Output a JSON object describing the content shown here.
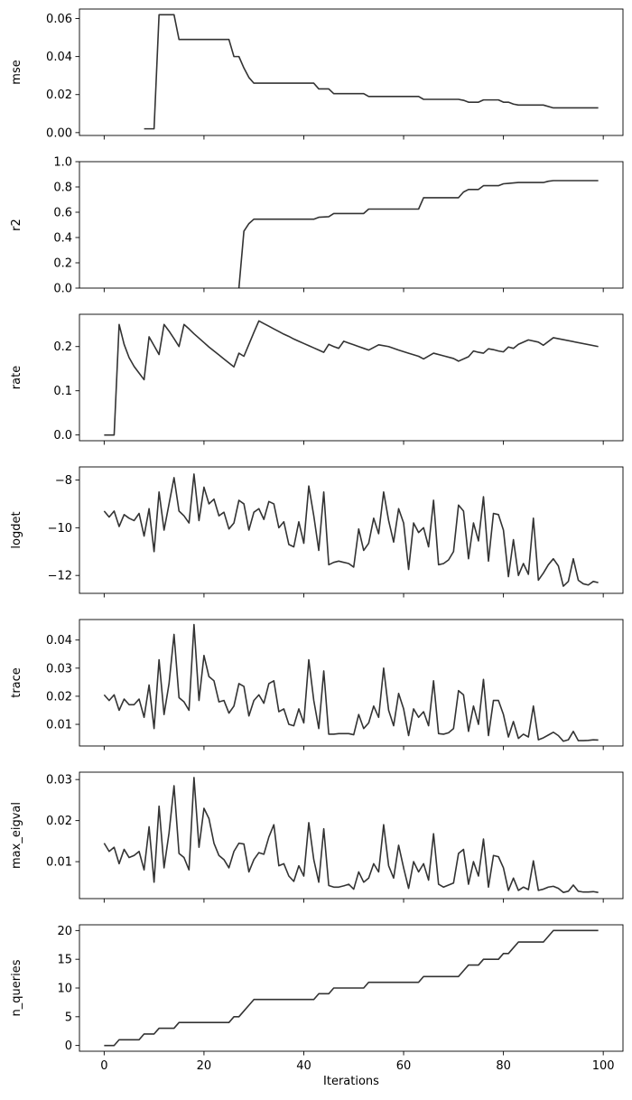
{
  "chart_data": [
    {
      "type": "line",
      "ylabel": "mse",
      "xlabel": "",
      "xlim": [
        -4.95,
        103.95
      ],
      "ylim": [
        -0.0015,
        0.065
      ],
      "yticks": [
        0.0,
        0.02,
        0.04,
        0.06
      ],
      "ytick_labels": [
        "0.00",
        "0.02",
        "0.04",
        "0.06"
      ],
      "xticks": [
        0,
        20,
        40,
        60,
        80,
        100
      ],
      "xtick_labels": [
        "",
        "",
        "",
        "",
        "",
        ""
      ],
      "color": "#333333",
      "x": [
        8,
        10,
        11,
        14,
        15,
        25,
        26,
        27,
        28,
        29,
        30,
        42,
        43,
        45,
        46,
        52,
        53,
        63,
        64,
        71,
        72,
        73,
        75,
        76,
        79,
        80,
        81,
        82,
        83,
        88,
        90,
        99
      ],
      "y": [
        0.002,
        0.002,
        0.062,
        0.062,
        0.049,
        0.049,
        0.04,
        0.04,
        0.034,
        0.029,
        0.026,
        0.026,
        0.023,
        0.023,
        0.0205,
        0.0205,
        0.019,
        0.019,
        0.0175,
        0.0175,
        0.017,
        0.016,
        0.016,
        0.0172,
        0.0172,
        0.016,
        0.016,
        0.015,
        0.0145,
        0.0145,
        0.013,
        0.013
      ]
    },
    {
      "type": "line",
      "ylabel": "r2",
      "xlabel": "",
      "xlim": [
        -4.95,
        103.95
      ],
      "ylim": [
        0.0,
        1.0
      ],
      "yticks": [
        0.0,
        0.2,
        0.4,
        0.6,
        0.8,
        1.0
      ],
      "ytick_labels": [
        "0.0",
        "0.2",
        "0.4",
        "0.6",
        "0.8",
        "1.0"
      ],
      "xticks": [
        0,
        20,
        40,
        60,
        80,
        100
      ],
      "xtick_labels": [
        "",
        "",
        "",
        "",
        "",
        ""
      ],
      "color": "#333333",
      "x": [
        27,
        28,
        29,
        30,
        42,
        43,
        45,
        46,
        52,
        53,
        63,
        64,
        71,
        72,
        73,
        75,
        76,
        79,
        80,
        81,
        83,
        88,
        89,
        90,
        99
      ],
      "y": [
        0.0,
        0.45,
        0.51,
        0.545,
        0.545,
        0.56,
        0.565,
        0.59,
        0.59,
        0.625,
        0.625,
        0.715,
        0.715,
        0.76,
        0.78,
        0.78,
        0.81,
        0.81,
        0.825,
        0.828,
        0.835,
        0.835,
        0.845,
        0.85,
        0.85
      ]
    },
    {
      "type": "line",
      "ylabel": "rate",
      "xlabel": "",
      "xlim": [
        -4.95,
        103.95
      ],
      "ylim": [
        -0.013,
        0.273
      ],
      "yticks": [
        0.0,
        0.1,
        0.2
      ],
      "ytick_labels": [
        "0.0",
        "0.1",
        "0.2"
      ],
      "xticks": [
        0,
        20,
        40,
        60,
        80,
        100
      ],
      "xtick_labels": [
        "",
        "",
        "",
        "",
        "",
        ""
      ],
      "color": "#333333",
      "x": [
        0,
        2,
        3,
        4,
        5,
        6,
        7,
        8,
        9,
        10,
        11,
        12,
        13,
        14,
        15,
        16,
        17,
        18,
        19,
        20,
        21,
        22,
        23,
        24,
        25,
        26,
        27,
        28,
        29,
        30,
        31,
        32,
        33,
        34,
        35,
        36,
        37,
        38,
        39,
        40,
        41,
        42,
        43,
        44,
        45,
        46,
        47,
        48,
        49,
        50,
        51,
        52,
        53,
        55,
        57,
        59,
        61,
        63,
        64,
        66,
        68,
        70,
        71,
        73,
        74,
        75,
        76,
        77,
        78,
        79,
        80,
        81,
        82,
        83,
        85,
        87,
        88,
        90,
        99
      ],
      "y": [
        0.0,
        0.0,
        0.25,
        0.205,
        0.175,
        0.155,
        0.14,
        0.125,
        0.222,
        0.202,
        0.182,
        0.25,
        0.235,
        0.218,
        0.2,
        0.25,
        0.24,
        0.229,
        0.219,
        0.209,
        0.199,
        0.19,
        0.181,
        0.172,
        0.163,
        0.154,
        0.185,
        0.178,
        0.205,
        0.232,
        0.258,
        0.252,
        0.246,
        0.24,
        0.234,
        0.228,
        0.223,
        0.217,
        0.212,
        0.207,
        0.202,
        0.197,
        0.192,
        0.187,
        0.205,
        0.2,
        0.196,
        0.212,
        0.208,
        0.204,
        0.2,
        0.196,
        0.192,
        0.204,
        0.2,
        0.192,
        0.185,
        0.178,
        0.172,
        0.185,
        0.179,
        0.173,
        0.167,
        0.177,
        0.19,
        0.187,
        0.185,
        0.195,
        0.193,
        0.19,
        0.188,
        0.199,
        0.196,
        0.205,
        0.215,
        0.21,
        0.203,
        0.22,
        0.2
      ]
    },
    {
      "type": "line",
      "ylabel": "logdet",
      "xlabel": "",
      "xlim": [
        -4.95,
        103.95
      ],
      "ylim": [
        -12.75,
        -7.45
      ],
      "yticks": [
        -12,
        -10,
        -8
      ],
      "ytick_labels": [
        "−12",
        "−10",
        "−8"
      ],
      "xticks": [
        0,
        20,
        40,
        60,
        80,
        100
      ],
      "xtick_labels": [
        "",
        "",
        "",
        "",
        "",
        ""
      ],
      "color": "#333333",
      "x": [
        0,
        1,
        2,
        3,
        4,
        5,
        6,
        7,
        8,
        9,
        10,
        11,
        12,
        13,
        14,
        15,
        16,
        17,
        18,
        19,
        20,
        21,
        22,
        23,
        24,
        25,
        26,
        27,
        28,
        29,
        30,
        31,
        32,
        33,
        34,
        35,
        36,
        37,
        38,
        39,
        40,
        41,
        42,
        43,
        44,
        45,
        46,
        47,
        48,
        49,
        50,
        51,
        52,
        53,
        54,
        55,
        56,
        57,
        58,
        59,
        60,
        61,
        62,
        63,
        64,
        65,
        66,
        67,
        68,
        69,
        70,
        71,
        72,
        73,
        74,
        75,
        76,
        77,
        78,
        79,
        80,
        81,
        82,
        83,
        84,
        85,
        86,
        87,
        88,
        89,
        90,
        91,
        92,
        93,
        94,
        95,
        96,
        97,
        98,
        99
      ],
      "y": [
        -9.3,
        -9.55,
        -9.3,
        -9.95,
        -9.45,
        -9.6,
        -9.7,
        -9.4,
        -10.35,
        -9.2,
        -11.0,
        -8.5,
        -10.1,
        -9.0,
        -7.9,
        -9.3,
        -9.5,
        -9.8,
        -7.75,
        -9.7,
        -8.3,
        -9.0,
        -8.8,
        -9.5,
        -9.35,
        -10.05,
        -9.8,
        -8.85,
        -9.0,
        -10.1,
        -9.35,
        -9.2,
        -9.65,
        -8.9,
        -9.0,
        -10.0,
        -9.75,
        -10.7,
        -10.8,
        -9.75,
        -10.65,
        -8.25,
        -9.5,
        -10.95,
        -8.5,
        -11.55,
        -11.45,
        -11.4,
        -11.45,
        -11.5,
        -11.65,
        -10.05,
        -10.95,
        -10.65,
        -9.6,
        -10.25,
        -8.5,
        -9.7,
        -10.6,
        -9.2,
        -9.8,
        -11.75,
        -9.8,
        -10.2,
        -10.0,
        -10.8,
        -8.85,
        -11.55,
        -11.5,
        -11.35,
        -11.0,
        -9.05,
        -9.3,
        -11.3,
        -9.8,
        -10.55,
        -8.7,
        -11.4,
        -9.4,
        -9.45,
        -10.1,
        -12.05,
        -10.5,
        -12.0,
        -11.5,
        -11.95,
        -9.6,
        -12.2,
        -11.9,
        -11.55,
        -11.3,
        -11.6,
        -12.45,
        -12.25,
        -11.3,
        -12.2,
        -12.35,
        -12.4,
        -12.25,
        -12.3
      ]
    },
    {
      "type": "line",
      "ylabel": "trace",
      "xlabel": "",
      "xlim": [
        -4.95,
        103.95
      ],
      "ylim": [
        0.0023,
        0.0473
      ],
      "yticks": [
        0.01,
        0.02,
        0.03,
        0.04
      ],
      "ytick_labels": [
        "0.01",
        "0.02",
        "0.03",
        "0.04"
      ],
      "xticks": [
        0,
        20,
        40,
        60,
        80,
        100
      ],
      "xtick_labels": [
        "",
        "",
        "",
        "",
        "",
        ""
      ],
      "color": "#333333",
      "x": [
        0,
        1,
        2,
        3,
        4,
        5,
        6,
        7,
        8,
        9,
        10,
        11,
        12,
        13,
        14,
        15,
        16,
        17,
        18,
        19,
        20,
        21,
        22,
        23,
        24,
        25,
        26,
        27,
        28,
        29,
        30,
        31,
        32,
        33,
        34,
        35,
        36,
        37,
        38,
        39,
        40,
        41,
        42,
        43,
        44,
        45,
        46,
        47,
        48,
        49,
        50,
        51,
        52,
        53,
        54,
        55,
        56,
        57,
        58,
        59,
        60,
        61,
        62,
        63,
        64,
        65,
        66,
        67,
        68,
        69,
        70,
        71,
        72,
        73,
        74,
        75,
        76,
        77,
        78,
        79,
        80,
        81,
        82,
        83,
        84,
        85,
        86,
        87,
        88,
        89,
        90,
        91,
        92,
        93,
        94,
        95,
        96,
        97,
        98,
        99
      ],
      "y": [
        0.0205,
        0.0185,
        0.0205,
        0.015,
        0.019,
        0.017,
        0.017,
        0.019,
        0.0125,
        0.024,
        0.0085,
        0.033,
        0.0135,
        0.0245,
        0.042,
        0.0195,
        0.018,
        0.015,
        0.0455,
        0.0185,
        0.0345,
        0.027,
        0.0255,
        0.018,
        0.0185,
        0.014,
        0.0165,
        0.0245,
        0.0235,
        0.013,
        0.0185,
        0.0205,
        0.0175,
        0.0245,
        0.0255,
        0.0145,
        0.0155,
        0.01,
        0.0095,
        0.0155,
        0.0105,
        0.033,
        0.0185,
        0.0085,
        0.029,
        0.0065,
        0.0065,
        0.0067,
        0.0067,
        0.0067,
        0.0063,
        0.0135,
        0.0085,
        0.0105,
        0.0165,
        0.0125,
        0.03,
        0.015,
        0.0095,
        0.021,
        0.0155,
        0.006,
        0.0155,
        0.0125,
        0.0145,
        0.0095,
        0.0255,
        0.0067,
        0.0065,
        0.007,
        0.0085,
        0.022,
        0.0205,
        0.0075,
        0.0165,
        0.01,
        0.026,
        0.006,
        0.0185,
        0.0185,
        0.0135,
        0.0055,
        0.011,
        0.005,
        0.0065,
        0.0055,
        0.0165,
        0.0045,
        0.0052,
        0.0062,
        0.0072,
        0.006,
        0.004,
        0.0045,
        0.0075,
        0.0042,
        0.0042,
        0.0043,
        0.0045,
        0.0044
      ]
    },
    {
      "type": "line",
      "ylabel": "max_eigval",
      "xlabel": "",
      "xlim": [
        -4.95,
        103.95
      ],
      "ylim": [
        0.001,
        0.0318
      ],
      "yticks": [
        0.01,
        0.02,
        0.03
      ],
      "ytick_labels": [
        "0.01",
        "0.02",
        "0.03"
      ],
      "xticks": [
        0,
        20,
        40,
        60,
        80,
        100
      ],
      "xtick_labels": [
        "",
        "",
        "",
        "",
        "",
        ""
      ],
      "color": "#333333",
      "x": [
        0,
        1,
        2,
        3,
        4,
        5,
        6,
        7,
        8,
        9,
        10,
        11,
        12,
        13,
        14,
        15,
        16,
        17,
        18,
        19,
        20,
        21,
        22,
        23,
        24,
        25,
        26,
        27,
        28,
        29,
        30,
        31,
        32,
        33,
        34,
        35,
        36,
        37,
        38,
        39,
        40,
        41,
        42,
        43,
        44,
        45,
        46,
        47,
        48,
        49,
        50,
        51,
        52,
        53,
        54,
        55,
        56,
        57,
        58,
        59,
        60,
        61,
        62,
        63,
        64,
        65,
        66,
        67,
        68,
        69,
        70,
        71,
        72,
        73,
        74,
        75,
        76,
        77,
        78,
        79,
        80,
        81,
        82,
        83,
        84,
        85,
        86,
        87,
        88,
        89,
        90,
        91,
        92,
        93,
        94,
        95,
        96,
        97,
        98,
        99
      ],
      "y": [
        0.0145,
        0.0125,
        0.0135,
        0.0095,
        0.013,
        0.011,
        0.0115,
        0.0125,
        0.008,
        0.0185,
        0.005,
        0.0235,
        0.0085,
        0.017,
        0.0285,
        0.012,
        0.011,
        0.008,
        0.0305,
        0.0135,
        0.023,
        0.0205,
        0.0145,
        0.0115,
        0.0105,
        0.0085,
        0.0125,
        0.0145,
        0.0143,
        0.0075,
        0.0105,
        0.0122,
        0.0118,
        0.016,
        0.019,
        0.009,
        0.0095,
        0.0065,
        0.0052,
        0.009,
        0.0065,
        0.0195,
        0.0105,
        0.005,
        0.018,
        0.0042,
        0.0038,
        0.0038,
        0.0041,
        0.0045,
        0.0033,
        0.0075,
        0.005,
        0.006,
        0.0095,
        0.0075,
        0.019,
        0.009,
        0.006,
        0.014,
        0.0085,
        0.0035,
        0.01,
        0.0075,
        0.0095,
        0.0055,
        0.0168,
        0.0045,
        0.0038,
        0.0043,
        0.0048,
        0.012,
        0.013,
        0.0045,
        0.01,
        0.0065,
        0.0155,
        0.0038,
        0.0115,
        0.0112,
        0.0085,
        0.003,
        0.006,
        0.003,
        0.0038,
        0.0032,
        0.0102,
        0.003,
        0.0033,
        0.0038,
        0.004,
        0.0035,
        0.0025,
        0.0028,
        0.0043,
        0.0028,
        0.0026,
        0.0026,
        0.0027,
        0.0025
      ]
    },
    {
      "type": "line",
      "ylabel": "n_queries",
      "xlabel": "Iterations",
      "xlim": [
        -4.95,
        103.95
      ],
      "ylim": [
        -1.0,
        21.0
      ],
      "yticks": [
        0,
        5,
        10,
        15,
        20
      ],
      "ytick_labels": [
        "0",
        "5",
        "10",
        "15",
        "20"
      ],
      "xticks": [
        0,
        20,
        40,
        60,
        80,
        100
      ],
      "xtick_labels": [
        "0",
        "20",
        "40",
        "60",
        "80",
        "100"
      ],
      "color": "#333333",
      "x": [
        0,
        2,
        3,
        7,
        8,
        10,
        11,
        14,
        15,
        25,
        26,
        27,
        28,
        29,
        30,
        42,
        43,
        45,
        46,
        52,
        53,
        63,
        64,
        71,
        72,
        73,
        75,
        76,
        79,
        80,
        81,
        82,
        83,
        88,
        89,
        90,
        99
      ],
      "y": [
        0,
        0,
        1,
        1,
        2,
        2,
        3,
        3,
        4,
        4,
        5,
        5,
        6,
        7,
        8,
        8,
        9,
        9,
        10,
        10,
        11,
        11,
        12,
        12,
        13,
        14,
        14,
        15,
        15,
        16,
        16,
        17,
        18,
        18,
        19,
        20,
        20
      ]
    }
  ]
}
